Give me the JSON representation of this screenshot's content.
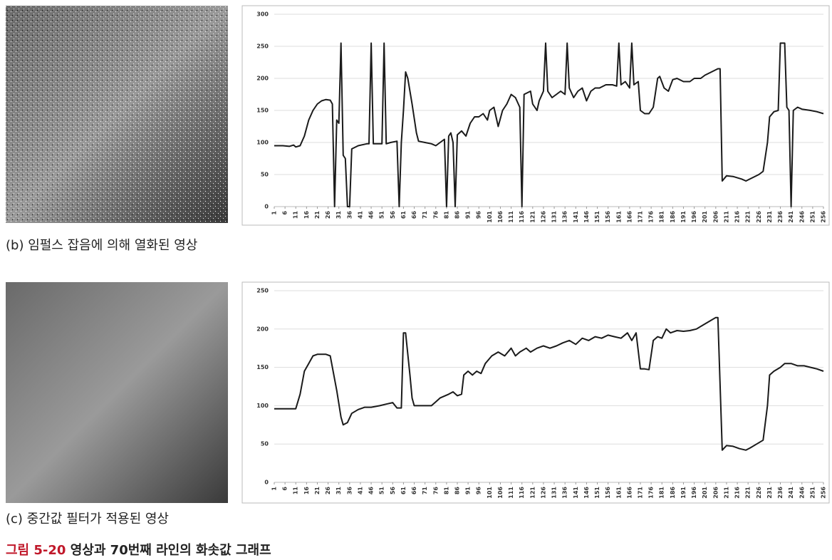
{
  "chart_data": [
    {
      "type": "line",
      "grid": true,
      "color": "#1a1a1a",
      "xlim": [
        1,
        256
      ],
      "ylim": [
        0,
        300
      ],
      "yticks": [
        0,
        50,
        100,
        150,
        200,
        250,
        300
      ],
      "xticks": [
        1,
        6,
        11,
        16,
        21,
        26,
        31,
        36,
        41,
        46,
        51,
        56,
        61,
        66,
        71,
        76,
        81,
        86,
        91,
        96,
        101,
        106,
        111,
        116,
        121,
        126,
        131,
        136,
        141,
        146,
        151,
        156,
        161,
        166,
        171,
        176,
        181,
        186,
        191,
        196,
        201,
        206,
        211,
        216,
        221,
        226,
        231,
        236,
        241,
        246,
        251,
        256
      ],
      "x": [
        1,
        5,
        8,
        10,
        11,
        13,
        15,
        17,
        19,
        21,
        23,
        25,
        27,
        28,
        29,
        30,
        31,
        32,
        33,
        34,
        35,
        36,
        37,
        40,
        44,
        45,
        46,
        47,
        50,
        51,
        52,
        53,
        55,
        58,
        59,
        60,
        61,
        62,
        63,
        65,
        67,
        68,
        71,
        74,
        76,
        78,
        80,
        81,
        82,
        83,
        84,
        85,
        86,
        88,
        90,
        92,
        94,
        96,
        98,
        100,
        101,
        103,
        105,
        107,
        109,
        111,
        113,
        115,
        116,
        117,
        120,
        121,
        123,
        124,
        126,
        127,
        128,
        130,
        132,
        134,
        136,
        137,
        138,
        140,
        142,
        144,
        146,
        148,
        150,
        152,
        155,
        158,
        160,
        161,
        162,
        164,
        166,
        167,
        168,
        170,
        171,
        173,
        175,
        177,
        179,
        180,
        182,
        184,
        186,
        188,
        191,
        194,
        196,
        199,
        201,
        204,
        207,
        208,
        209,
        211,
        214,
        218,
        220,
        223,
        226,
        228,
        230,
        231,
        233,
        235,
        236,
        238,
        239,
        240,
        241,
        242,
        244,
        246,
        250,
        253,
        256
      ],
      "values": [
        95,
        95,
        94,
        96,
        93,
        95,
        110,
        135,
        150,
        160,
        165,
        167,
        166,
        160,
        0,
        135,
        130,
        255,
        80,
        75,
        0,
        0,
        90,
        95,
        98,
        98,
        255,
        98,
        98,
        98,
        255,
        98,
        100,
        102,
        0,
        100,
        150,
        210,
        200,
        160,
        115,
        102,
        100,
        98,
        95,
        100,
        105,
        0,
        110,
        115,
        100,
        0,
        112,
        118,
        110,
        130,
        140,
        140,
        145,
        135,
        150,
        155,
        125,
        150,
        160,
        175,
        170,
        155,
        0,
        175,
        180,
        160,
        150,
        165,
        180,
        255,
        180,
        170,
        175,
        180,
        175,
        255,
        185,
        170,
        180,
        185,
        165,
        180,
        185,
        185,
        190,
        190,
        188,
        255,
        190,
        195,
        185,
        255,
        190,
        195,
        150,
        145,
        145,
        155,
        200,
        203,
        185,
        180,
        198,
        200,
        195,
        195,
        200,
        200,
        205,
        210,
        215,
        215,
        40,
        48,
        47,
        43,
        40,
        45,
        50,
        55,
        100,
        140,
        148,
        150,
        255,
        255,
        155,
        150,
        0,
        150,
        155,
        152,
        150,
        148,
        145
      ]
    },
    {
      "type": "line",
      "grid": true,
      "color": "#1a1a1a",
      "xlim": [
        1,
        256
      ],
      "ylim": [
        0,
        250
      ],
      "yticks": [
        0,
        50,
        100,
        150,
        200,
        250
      ],
      "xticks": [
        1,
        6,
        11,
        16,
        21,
        26,
        31,
        36,
        41,
        46,
        51,
        56,
        61,
        66,
        71,
        76,
        81,
        86,
        91,
        96,
        101,
        106,
        111,
        116,
        121,
        126,
        131,
        136,
        141,
        146,
        151,
        156,
        161,
        166,
        171,
        176,
        181,
        186,
        191,
        196,
        201,
        206,
        211,
        216,
        221,
        226,
        231,
        236,
        241,
        246,
        251,
        256
      ],
      "x": [
        1,
        10,
        11,
        13,
        15,
        17,
        19,
        21,
        25,
        27,
        30,
        32,
        33,
        35,
        37,
        40,
        43,
        46,
        50,
        53,
        56,
        58,
        60,
        61,
        62,
        64,
        65,
        66,
        70,
        74,
        76,
        78,
        82,
        84,
        86,
        88,
        89,
        91,
        93,
        95,
        97,
        99,
        102,
        105,
        108,
        111,
        113,
        115,
        118,
        120,
        123,
        126,
        129,
        132,
        135,
        138,
        141,
        144,
        147,
        150,
        153,
        156,
        159,
        162,
        165,
        167,
        169,
        171,
        173,
        175,
        177,
        179,
        181,
        183,
        185,
        188,
        191,
        194,
        197,
        200,
        203,
        206,
        207,
        209,
        211,
        214,
        217,
        220,
        222,
        225,
        228,
        230,
        231,
        233,
        236,
        238,
        241,
        244,
        247,
        250,
        253,
        256
      ],
      "values": [
        96,
        96,
        96,
        115,
        145,
        155,
        165,
        167,
        167,
        165,
        120,
        85,
        75,
        78,
        90,
        95,
        98,
        98,
        100,
        102,
        104,
        97,
        97,
        195,
        195,
        140,
        110,
        100,
        100,
        100,
        105,
        110,
        115,
        118,
        113,
        115,
        140,
        145,
        140,
        145,
        142,
        155,
        165,
        170,
        165,
        175,
        165,
        170,
        175,
        170,
        175,
        178,
        175,
        178,
        182,
        185,
        180,
        188,
        185,
        190,
        188,
        192,
        190,
        188,
        195,
        185,
        195,
        148,
        148,
        147,
        185,
        190,
        188,
        200,
        195,
        198,
        197,
        198,
        200,
        205,
        210,
        215,
        215,
        42,
        48,
        47,
        44,
        42,
        45,
        50,
        55,
        100,
        140,
        145,
        150,
        155,
        155,
        152,
        152,
        150,
        148,
        145
      ]
    }
  ],
  "captions": [
    "(b) 임펄스 잡음에 의해 열화된 영상",
    "(c) 중간값 필터가 적용된 영상"
  ],
  "figure_caption": {
    "label": "그림 5-20",
    "text": "영상과 70번째 라인의 화솟값 그래프"
  }
}
